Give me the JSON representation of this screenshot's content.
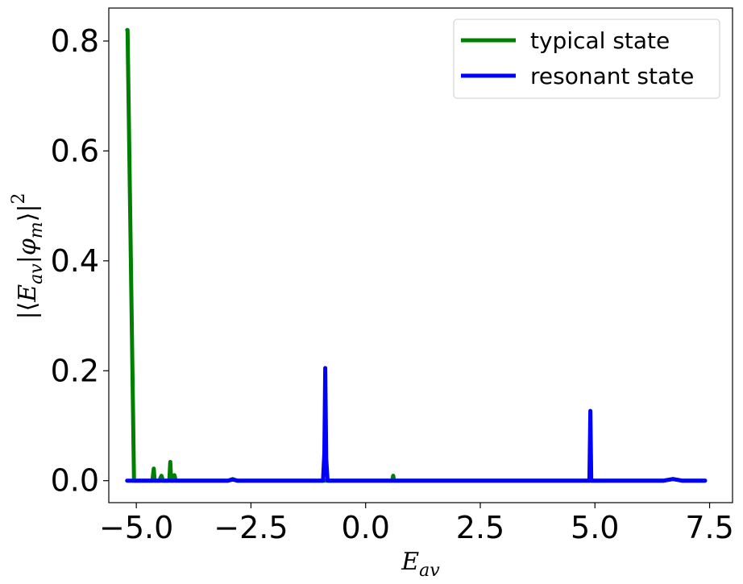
{
  "chart_data": {
    "type": "line",
    "title": "",
    "xlabel": "E_av",
    "ylabel": "|⟨E_av|φ_m⟩|²",
    "xlim": [
      -5.6,
      8.0
    ],
    "ylim": [
      -0.04,
      0.86
    ],
    "x_ticks": [
      -5.0,
      -2.5,
      0.0,
      2.5,
      5.0,
      7.5
    ],
    "x_tick_labels": [
      "−5.0",
      "−2.5",
      "0.0",
      "2.5",
      "5.0",
      "7.5"
    ],
    "y_ticks": [
      0.0,
      0.2,
      0.4,
      0.6,
      0.8
    ],
    "y_tick_labels": [
      "0.0",
      "0.2",
      "0.4",
      "0.6",
      "0.8"
    ],
    "grid": false,
    "legend_position": "upper right",
    "series": [
      {
        "name": "typical state",
        "color": "#008000",
        "x": [
          -5.2,
          -5.19,
          -5.05,
          -4.9,
          -4.65,
          -4.62,
          -4.6,
          -4.5,
          -4.45,
          -4.42,
          -4.35,
          -4.28,
          -4.26,
          -4.24,
          -4.2,
          -4.17,
          -4.14,
          -4.0,
          -3.5,
          -3.0,
          -2.9,
          -2.8,
          -2.6,
          -2.0,
          0.0,
          0.58,
          0.6,
          0.62,
          1.0,
          3.0,
          5.0,
          6.5,
          6.7,
          6.9,
          7.4
        ],
        "y": [
          0.82,
          0.82,
          0.0,
          0.0,
          0.0,
          0.022,
          0.0,
          0.0,
          0.009,
          0.0,
          0.0,
          0.0,
          0.034,
          0.0,
          0.0,
          0.01,
          0.0,
          0.0,
          0.0,
          0.0,
          0.003,
          0.0,
          0.0,
          0.0,
          0.0,
          0.0,
          0.009,
          0.0,
          0.0,
          0.0,
          0.0,
          0.0,
          0.003,
          0.0,
          0.0
        ]
      },
      {
        "name": "resonant state",
        "color": "#0000ff",
        "x": [
          -5.2,
          -4.0,
          -3.0,
          -2.9,
          -2.8,
          -1.0,
          -0.93,
          -0.9,
          -0.88,
          -0.86,
          -0.83,
          1.0,
          3.0,
          4.85,
          4.88,
          4.9,
          4.92,
          4.95,
          6.5,
          6.7,
          6.9,
          7.4
        ],
        "y": [
          0.0,
          0.0,
          0.0,
          0.002,
          0.0,
          0.0,
          0.0,
          0.05,
          0.205,
          0.04,
          0.0,
          0.0,
          0.0,
          0.0,
          0.0,
          0.127,
          0.0,
          0.0,
          0.0,
          0.003,
          0.0,
          0.0
        ]
      }
    ]
  }
}
